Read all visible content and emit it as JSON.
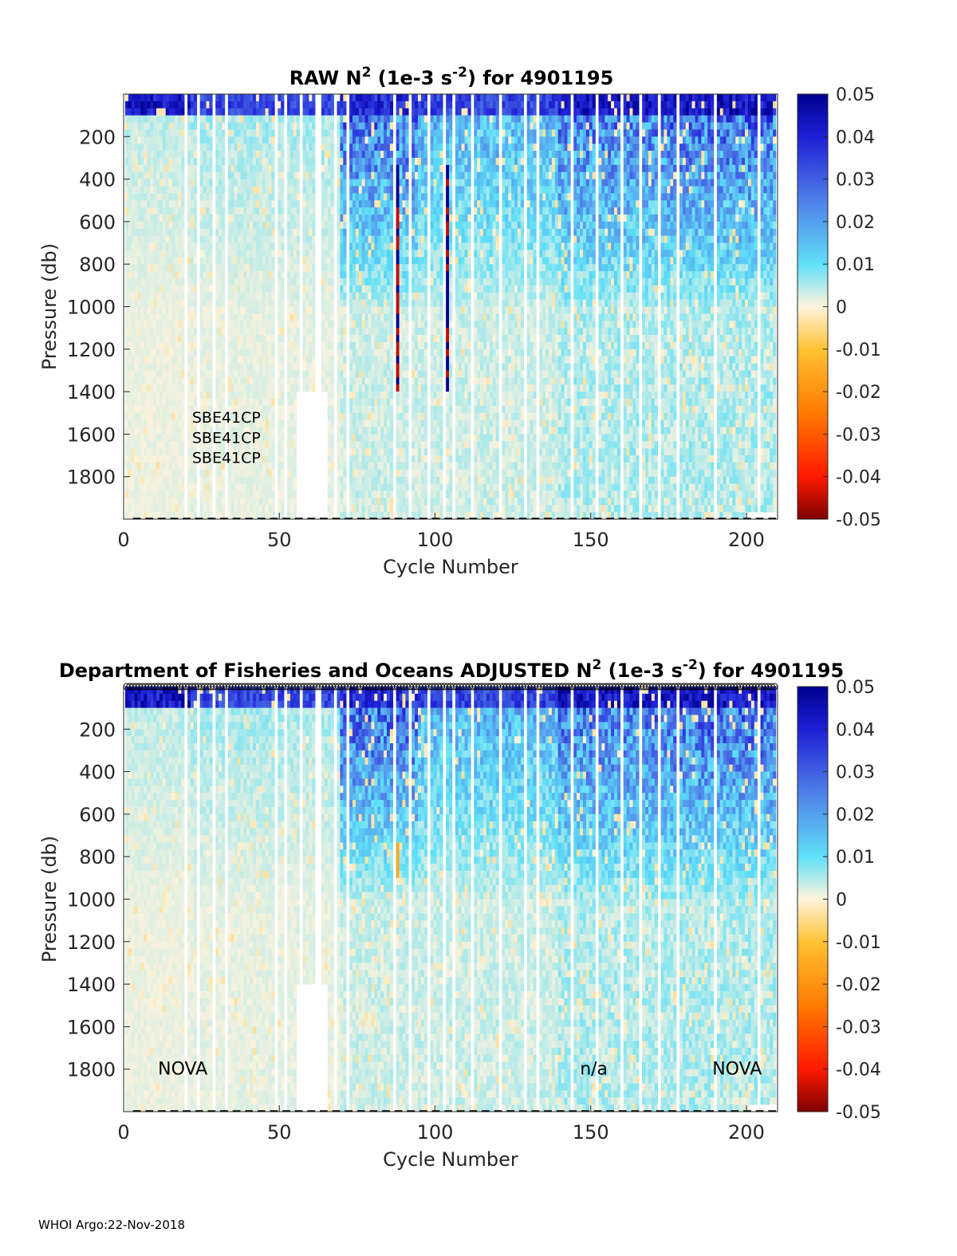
{
  "footer": "WHOI Argo:22-Nov-2018",
  "chart_data": [
    {
      "type": "heatmap",
      "id": "raw",
      "title": {
        "prefix": "RAW N",
        "sup1": "2",
        "mid": " (1e-3 s",
        "sup2": "-2",
        "suffix": ") for 4901195"
      },
      "xlabel": "Cycle Number",
      "ylabel": "Pressure (db)",
      "xlim": [
        0,
        210
      ],
      "ylim": [
        2000,
        0
      ],
      "xticks": [
        0,
        50,
        100,
        150,
        200
      ],
      "yticks": [
        200,
        400,
        600,
        800,
        1000,
        1200,
        1400,
        1600,
        1800
      ],
      "clim": [
        -0.05,
        0.05
      ],
      "colorbar_ticks": [
        "0.05",
        "0.04",
        "0.03",
        "0.02",
        "0.01",
        "0",
        "-0.01",
        "-0.02",
        "-0.03",
        "-0.04",
        "-0.05"
      ],
      "annotations": [
        {
          "text": "SBE41CP",
          "cycle": 33,
          "pressure": 1520
        },
        {
          "text": "SBE41CP",
          "cycle": 33,
          "pressure": 1615
        },
        {
          "text": "SBE41CP",
          "cycle": 33,
          "pressure": 1710
        }
      ],
      "bands": [
        {
          "cycles": [
            0,
            22
          ],
          "surface": 0.05,
          "deep": 0.0015
        },
        {
          "cycles": [
            22,
            70
          ],
          "surface": 0.04,
          "deep": 0.002
        },
        {
          "cycles": [
            70,
            95
          ],
          "surface": 0.045,
          "mid": 0.03,
          "deep": 0.004
        },
        {
          "cycles": [
            95,
            140
          ],
          "surface": 0.04,
          "mid": 0.018,
          "deep": 0.004
        },
        {
          "cycles": [
            140,
            175
          ],
          "surface": 0.05,
          "mid": 0.028,
          "deep": 0.006
        },
        {
          "cycles": [
            175,
            210
          ],
          "surface": 0.05,
          "mid": 0.03,
          "deep": 0.006
        }
      ]
    },
    {
      "type": "heatmap",
      "id": "adjusted",
      "title": {
        "prefix": "Department of Fisheries and Oceans  ADJUSTED N",
        "sup1": "2",
        "mid": " (1e-3 s",
        "sup2": "-2",
        "suffix": ") for 4901195"
      },
      "xlabel": "Cycle Number",
      "ylabel": "Pressure (db)",
      "xlim": [
        0,
        210
      ],
      "ylim": [
        2000,
        0
      ],
      "xticks": [
        0,
        50,
        100,
        150,
        200
      ],
      "yticks": [
        200,
        400,
        600,
        800,
        1000,
        1200,
        1400,
        1600,
        1800
      ],
      "clim": [
        -0.05,
        0.05
      ],
      "colorbar_ticks": [
        "0.05",
        "0.04",
        "0.03",
        "0.02",
        "0.01",
        "0",
        "-0.01",
        "-0.02",
        "-0.03",
        "-0.04",
        "-0.05"
      ],
      "annotations": [
        {
          "text": "NOVA",
          "cycle": 19,
          "pressure": 1800
        },
        {
          "text": "n/a",
          "cycle": 151,
          "pressure": 1800
        },
        {
          "text": "NOVA",
          "cycle": 197,
          "pressure": 1800
        }
      ],
      "bands": [
        {
          "cycles": [
            0,
            22
          ],
          "surface": 0.05,
          "deep": 0.0015
        },
        {
          "cycles": [
            22,
            70
          ],
          "surface": 0.04,
          "deep": 0.002
        },
        {
          "cycles": [
            70,
            95
          ],
          "surface": 0.045,
          "mid": 0.03,
          "deep": 0.004
        },
        {
          "cycles": [
            95,
            140
          ],
          "surface": 0.04,
          "mid": 0.018,
          "deep": 0.004
        },
        {
          "cycles": [
            140,
            175
          ],
          "surface": 0.05,
          "mid": 0.028,
          "deep": 0.006
        },
        {
          "cycles": [
            175,
            210
          ],
          "surface": 0.05,
          "mid": 0.03,
          "deep": 0.006
        }
      ]
    }
  ]
}
